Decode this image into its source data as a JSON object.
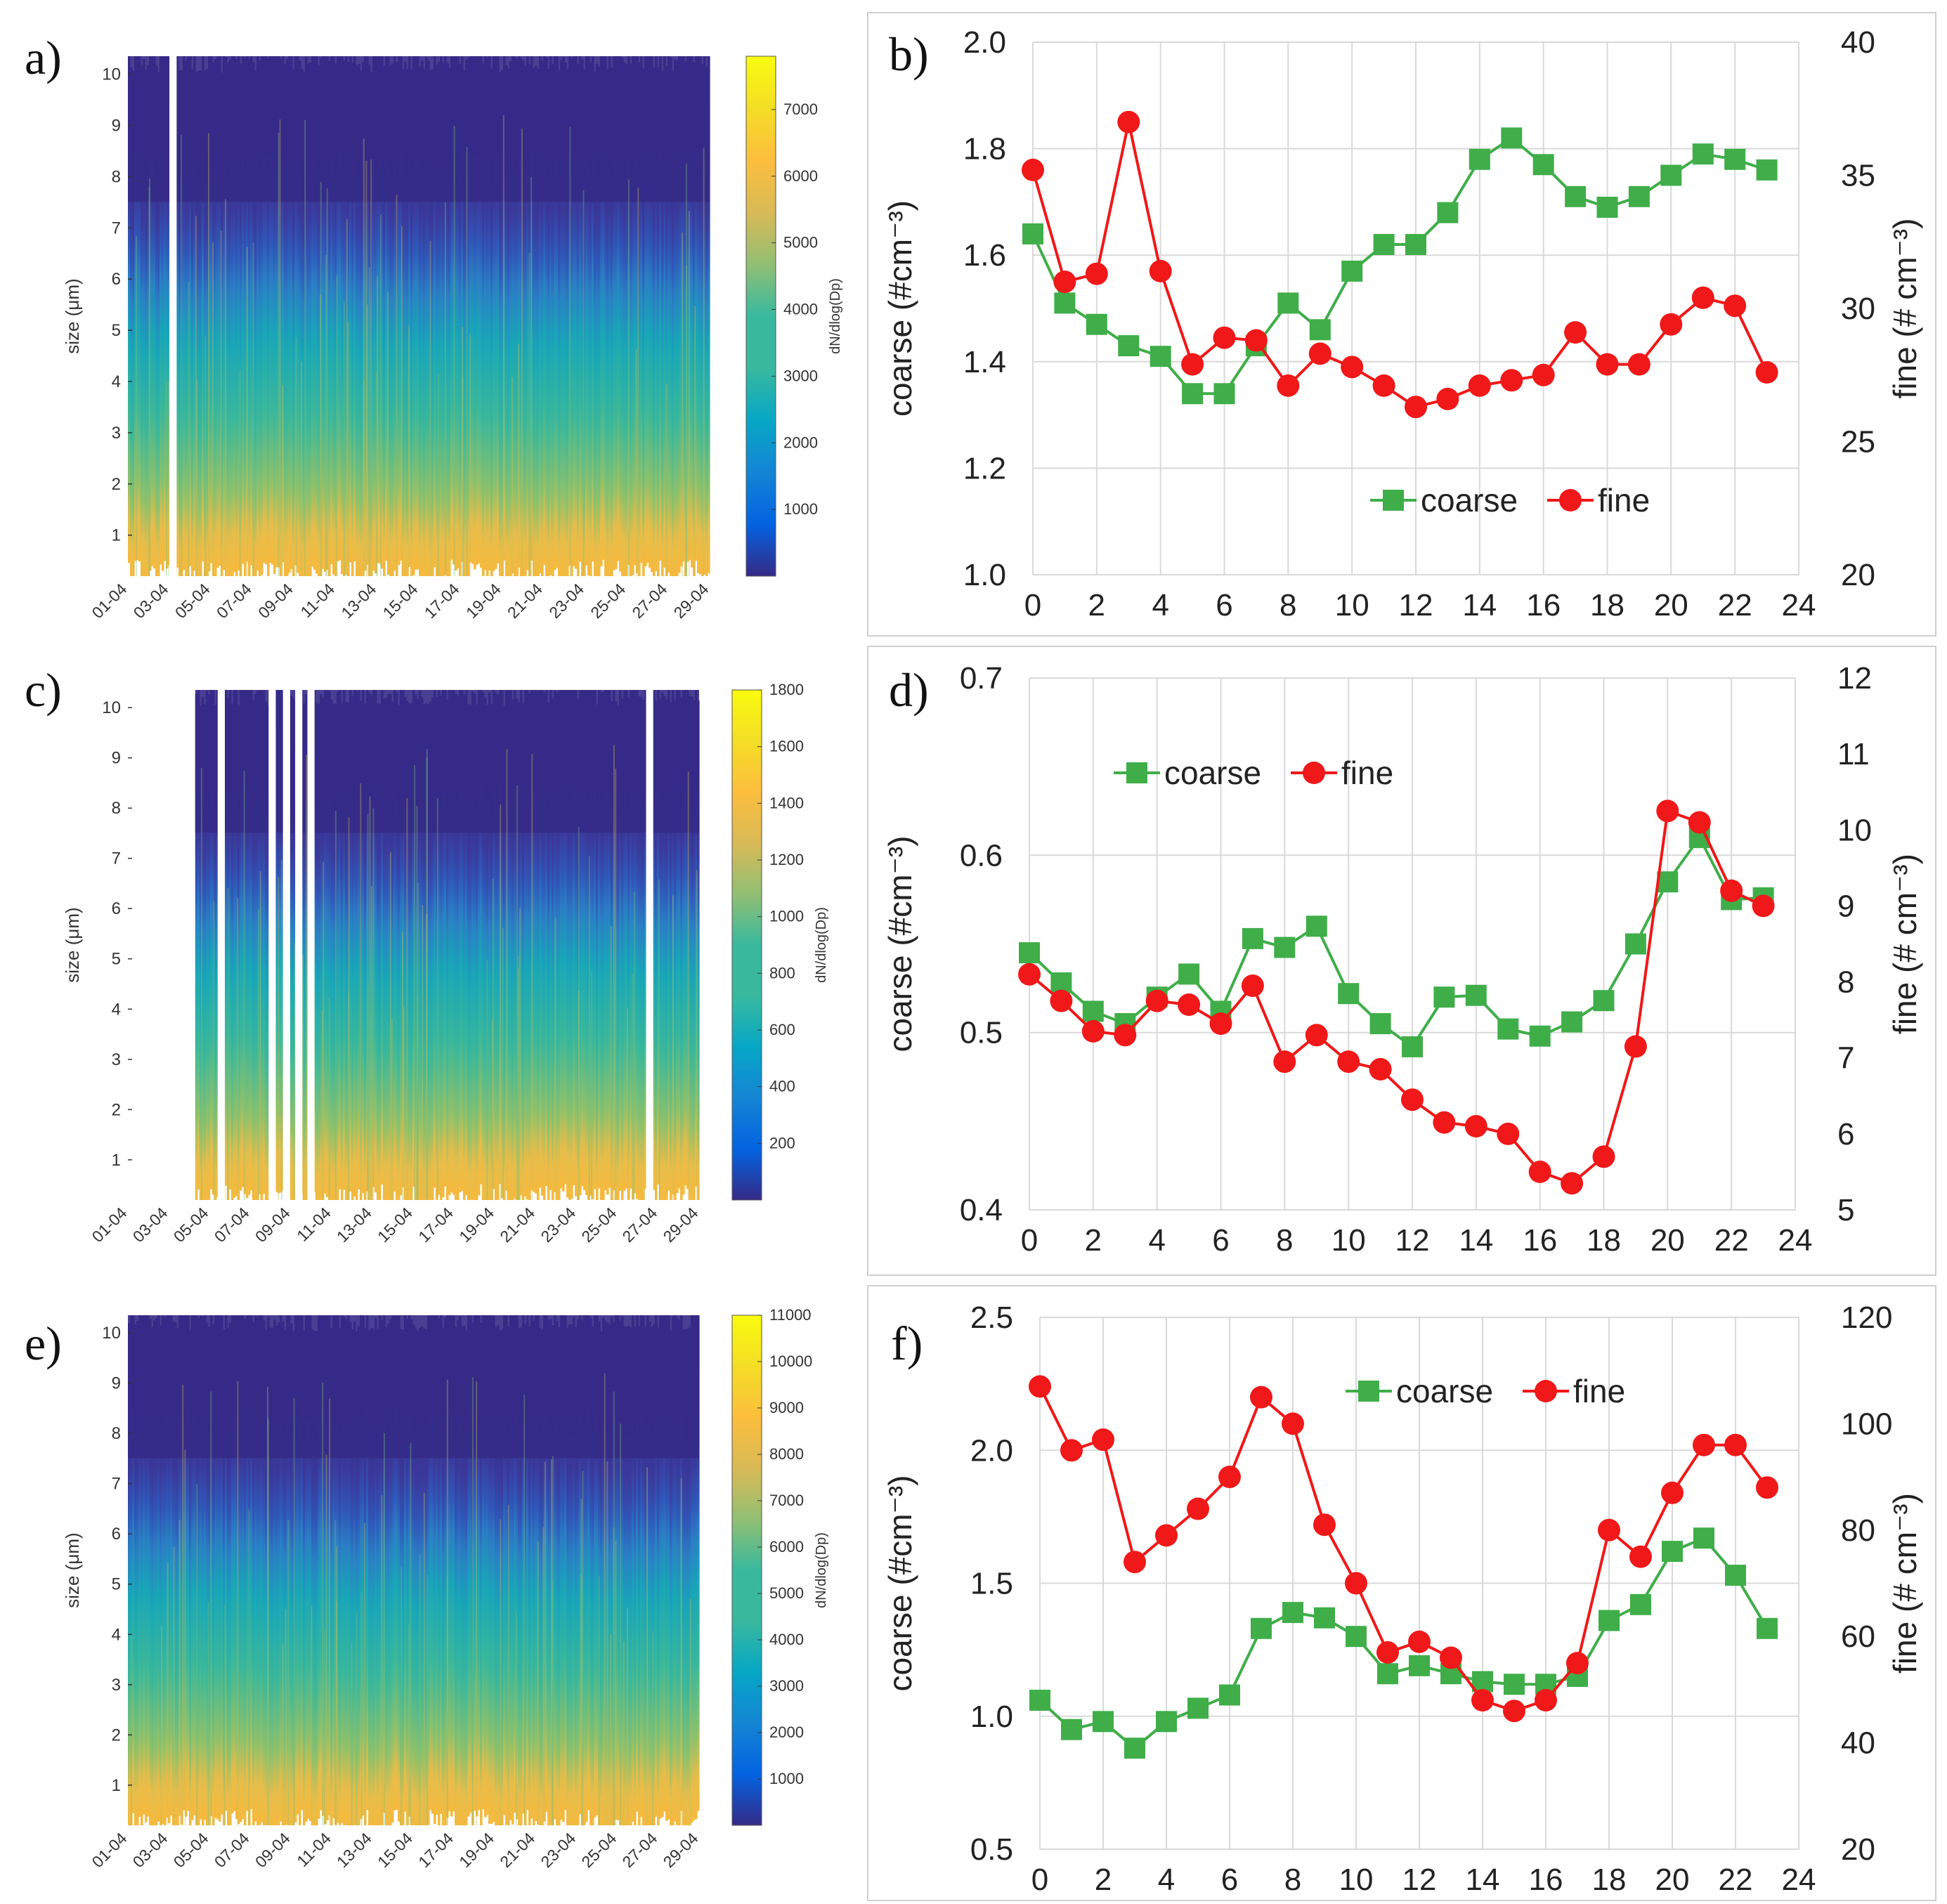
{
  "chart_data": [
    {
      "panel": "a)",
      "type": "heatmap",
      "ylabel": "size (μm)",
      "yticks": [
        "1",
        "2",
        "3",
        "4",
        "5",
        "6",
        "7",
        "8",
        "9",
        "10"
      ],
      "xticks": [
        "01-04",
        "03-04",
        "05-04",
        "07-04",
        "09-04",
        "11-04",
        "13-04",
        "15-04",
        "17-04",
        "19-04",
        "21-04",
        "23-04",
        "25-04",
        "27-04",
        "29-04"
      ],
      "colorbar_label": "dN/dlog(Dp)",
      "colorbar_ticks": [
        "1000",
        "2000",
        "3000",
        "4000",
        "5000",
        "6000",
        "7000"
      ],
      "colorbar_range": [
        0,
        7800
      ],
      "data_start_index": 0,
      "gaps": [
        2.0
      ]
    },
    {
      "panel": "b)",
      "type": "line",
      "xlim": [
        0,
        24
      ],
      "xticks": [
        "0",
        "2",
        "4",
        "6",
        "8",
        "10",
        "12",
        "14",
        "16",
        "18",
        "20",
        "22",
        "24"
      ],
      "ylim_left": [
        1.0,
        2.0
      ],
      "yticks_left": [
        "1.0",
        "1.2",
        "1.4",
        "1.6",
        "1.8",
        "2.0"
      ],
      "ylim_right": [
        20,
        40
      ],
      "yticks_right": [
        "20",
        "25",
        "30",
        "35",
        "40"
      ],
      "ylabel_left": "coarse (#cm⁻³)",
      "ylabel_right": "fine (# cm⁻³)",
      "legend_position": "bottom-right",
      "x": [
        0,
        1,
        2,
        3,
        4,
        5,
        6,
        7,
        8,
        9,
        10,
        11,
        12,
        13,
        14,
        15,
        16,
        17,
        18,
        19,
        20,
        21,
        22,
        23
      ],
      "series": [
        {
          "name": "coarse",
          "axis": "left",
          "color": "#3fae49",
          "marker": "square",
          "values": [
            1.64,
            1.51,
            1.47,
            1.43,
            1.41,
            1.34,
            1.34,
            1.43,
            1.51,
            1.46,
            1.57,
            1.62,
            1.62,
            1.68,
            1.78,
            1.82,
            1.77,
            1.71,
            1.69,
            1.71,
            1.75,
            1.79,
            1.78,
            1.76
          ]
        },
        {
          "name": "fine",
          "axis": "right",
          "color": "#f01818",
          "marker": "circle",
          "values": [
            35.2,
            31.0,
            31.3,
            37.0,
            31.4,
            27.9,
            28.9,
            28.8,
            27.1,
            28.3,
            27.8,
            27.1,
            26.3,
            26.6,
            27.1,
            27.3,
            27.5,
            29.1,
            27.9,
            27.9,
            29.4,
            30.4,
            30.1,
            27.6
          ]
        }
      ]
    },
    {
      "panel": "c)",
      "type": "heatmap",
      "ylabel": "size (μm)",
      "yticks": [
        "1",
        "2",
        "3",
        "4",
        "5",
        "6",
        "7",
        "8",
        "9",
        "10"
      ],
      "xticks": [
        "01-04",
        "03-04",
        "05-04",
        "07-04",
        "09-04",
        "11-04",
        "13-04",
        "15-04",
        "17-04",
        "19-04",
        "21-04",
        "23-04",
        "25-04",
        "27-04",
        "29-04"
      ],
      "colorbar_label": "dN/dlog(Dp)",
      "colorbar_ticks": [
        "200",
        "400",
        "600",
        "800",
        "1000",
        "1200",
        "1400",
        "1600",
        "1800"
      ],
      "colorbar_range": [
        0,
        1800
      ],
      "data_start_index": 3.3,
      "gaps": [
        4.4,
        6.9,
        7.6,
        8.2,
        8.8,
        25.4
      ]
    },
    {
      "panel": "d)",
      "type": "line",
      "xlim": [
        0,
        24
      ],
      "xticks": [
        "0",
        "2",
        "4",
        "6",
        "8",
        "10",
        "12",
        "14",
        "16",
        "18",
        "20",
        "22",
        "24"
      ],
      "ylim_left": [
        0.4,
        0.7
      ],
      "yticks_left": [
        "0.4",
        "0.5",
        "0.6",
        "0.7"
      ],
      "ylim_right": [
        5,
        12
      ],
      "yticks_right": [
        "5",
        "6",
        "7",
        "8",
        "9",
        "10",
        "11",
        "12"
      ],
      "ylabel_left": "coarse (#cm⁻³)",
      "ylabel_right": "fine (# cm⁻³)",
      "legend_position": "top-left",
      "x": [
        0,
        1,
        2,
        3,
        4,
        5,
        6,
        7,
        8,
        9,
        10,
        11,
        12,
        13,
        14,
        15,
        16,
        17,
        18,
        19,
        20,
        21,
        22,
        23
      ],
      "series": [
        {
          "name": "coarse",
          "axis": "left",
          "color": "#3fae49",
          "marker": "square",
          "values": [
            0.545,
            0.528,
            0.512,
            0.505,
            0.52,
            0.533,
            0.512,
            0.553,
            0.548,
            0.56,
            0.522,
            0.505,
            0.492,
            0.52,
            0.521,
            0.502,
            0.498,
            0.506,
            0.518,
            0.55,
            0.585,
            0.61,
            0.575,
            0.576
          ]
        },
        {
          "name": "fine",
          "axis": "right",
          "color": "#f01818",
          "marker": "circle",
          "values": [
            8.1,
            7.75,
            7.35,
            7.3,
            7.75,
            7.7,
            7.45,
            7.95,
            6.95,
            7.3,
            6.95,
            6.85,
            6.45,
            6.15,
            6.1,
            6.0,
            5.5,
            5.35,
            5.7,
            7.15,
            10.25,
            10.1,
            9.2,
            9.0
          ]
        }
      ]
    },
    {
      "panel": "e)",
      "type": "heatmap",
      "ylabel": "size (μm)",
      "yticks": [
        "1",
        "2",
        "3",
        "4",
        "5",
        "6",
        "7",
        "8",
        "9",
        "10"
      ],
      "xticks": [
        "01-04",
        "03-04",
        "05-04",
        "07-04",
        "09-04",
        "11-04",
        "13-04",
        "15-04",
        "17-04",
        "19-04",
        "21-04",
        "23-04",
        "25-04",
        "27-04",
        "29-04"
      ],
      "colorbar_label": "dN/dlog(Dp)",
      "colorbar_ticks": [
        "1000",
        "2000",
        "3000",
        "4000",
        "5000",
        "6000",
        "7000",
        "8000",
        "9000",
        "10000",
        "11000"
      ],
      "colorbar_range": [
        0,
        11000
      ],
      "data_start_index": 0,
      "gaps": []
    },
    {
      "panel": "f)",
      "type": "line",
      "xlim": [
        0,
        24
      ],
      "xticks": [
        "0",
        "2",
        "4",
        "6",
        "8",
        "10",
        "12",
        "14",
        "16",
        "18",
        "20",
        "22",
        "24"
      ],
      "ylim_left": [
        0.5,
        2.5
      ],
      "yticks_left": [
        "0.5",
        "1.0",
        "1.5",
        "2.0",
        "2.5"
      ],
      "ylim_right": [
        20,
        120
      ],
      "yticks_right": [
        "20",
        "40",
        "60",
        "80",
        "100",
        "120"
      ],
      "ylabel_left": "coarse (#cm⁻³)",
      "ylabel_right": "fine (# cm⁻³)",
      "legend_position": "top-right",
      "x": [
        0,
        1,
        2,
        3,
        4,
        5,
        6,
        7,
        8,
        9,
        10,
        11,
        12,
        13,
        14,
        15,
        16,
        17,
        18,
        19,
        20,
        21,
        22,
        23
      ],
      "series": [
        {
          "name": "coarse",
          "axis": "left",
          "color": "#3fae49",
          "marker": "square",
          "values": [
            1.06,
            0.95,
            0.98,
            0.88,
            0.98,
            1.03,
            1.08,
            1.33,
            1.39,
            1.37,
            1.3,
            1.16,
            1.19,
            1.16,
            1.13,
            1.12,
            1.12,
            1.15,
            1.36,
            1.42,
            1.62,
            1.67,
            1.53,
            1.33
          ]
        },
        {
          "name": "fine",
          "axis": "right",
          "color": "#f01818",
          "marker": "circle",
          "values": [
            107,
            95,
            97,
            74,
            79,
            84,
            90,
            105,
            100,
            81,
            70,
            57,
            59,
            56,
            48,
            46,
            48,
            55,
            80,
            75,
            87,
            96,
            96,
            88
          ]
        }
      ]
    }
  ]
}
